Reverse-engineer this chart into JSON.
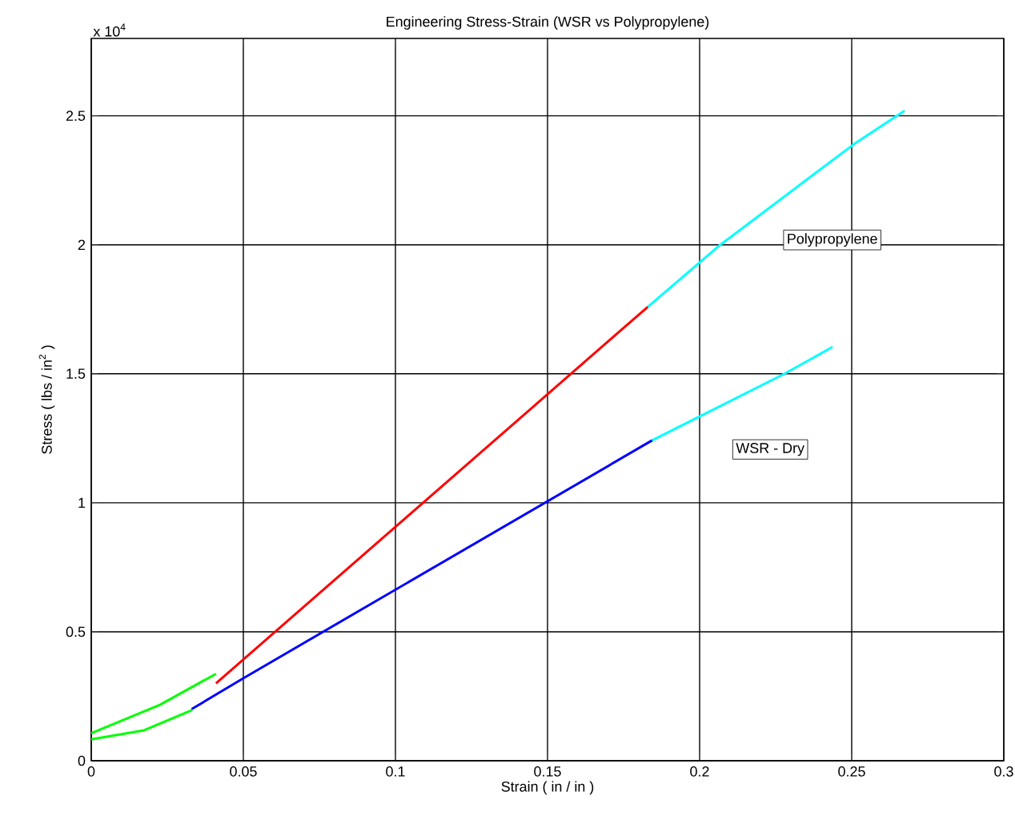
{
  "chart_data": {
    "type": "line",
    "title": "Engineering Stress-Strain (WSR vs Polypropylene)",
    "xlabel": "Strain   ( in / in )",
    "ylabel": "Stress   ( lbs / in$^{2}$ )",
    "xlim": [
      0,
      0.3
    ],
    "ylim": [
      0,
      2.8
    ],
    "xticks": [
      0,
      0.05,
      0.1,
      0.15,
      0.2,
      0.25,
      0.3
    ],
    "yticks": [
      0,
      0.5,
      1,
      1.5,
      2,
      2.5
    ],
    "grid": true,
    "line_style": "solid",
    "series": [
      {
        "color": "#00ff00",
        "x": [
          0,
          0.0226,
          0.041
        ],
        "values": [
          0.107,
          0.217,
          0.337
        ]
      },
      {
        "color": "#00ff00",
        "x": [
          0,
          0.0174,
          0.0332
        ],
        "values": [
          0.083,
          0.118,
          0.197
        ]
      },
      {
        "color": "#ff0000",
        "x": [
          0.041,
          0.183
        ],
        "values": [
          0.3,
          1.76
        ]
      },
      {
        "color": "#00ffff",
        "x": [
          0.183,
          0.2068,
          0.2507,
          0.2674
        ],
        "values": [
          1.76,
          2.0,
          2.39,
          2.52
        ]
      },
      {
        "color": "#0000ff",
        "x": [
          0.033,
          0.05,
          0.1844
        ],
        "values": [
          0.2,
          0.32,
          1.242
        ]
      },
      {
        "color": "#00ffff",
        "x": [
          0.1844,
          0.2279,
          0.2437
        ],
        "values": [
          1.242,
          1.5,
          1.604
        ]
      }
    ],
    "annotations": [
      "x 10$^{4}$",
      "Polypropylene",
      "WSR - Dry"
    ]
  }
}
